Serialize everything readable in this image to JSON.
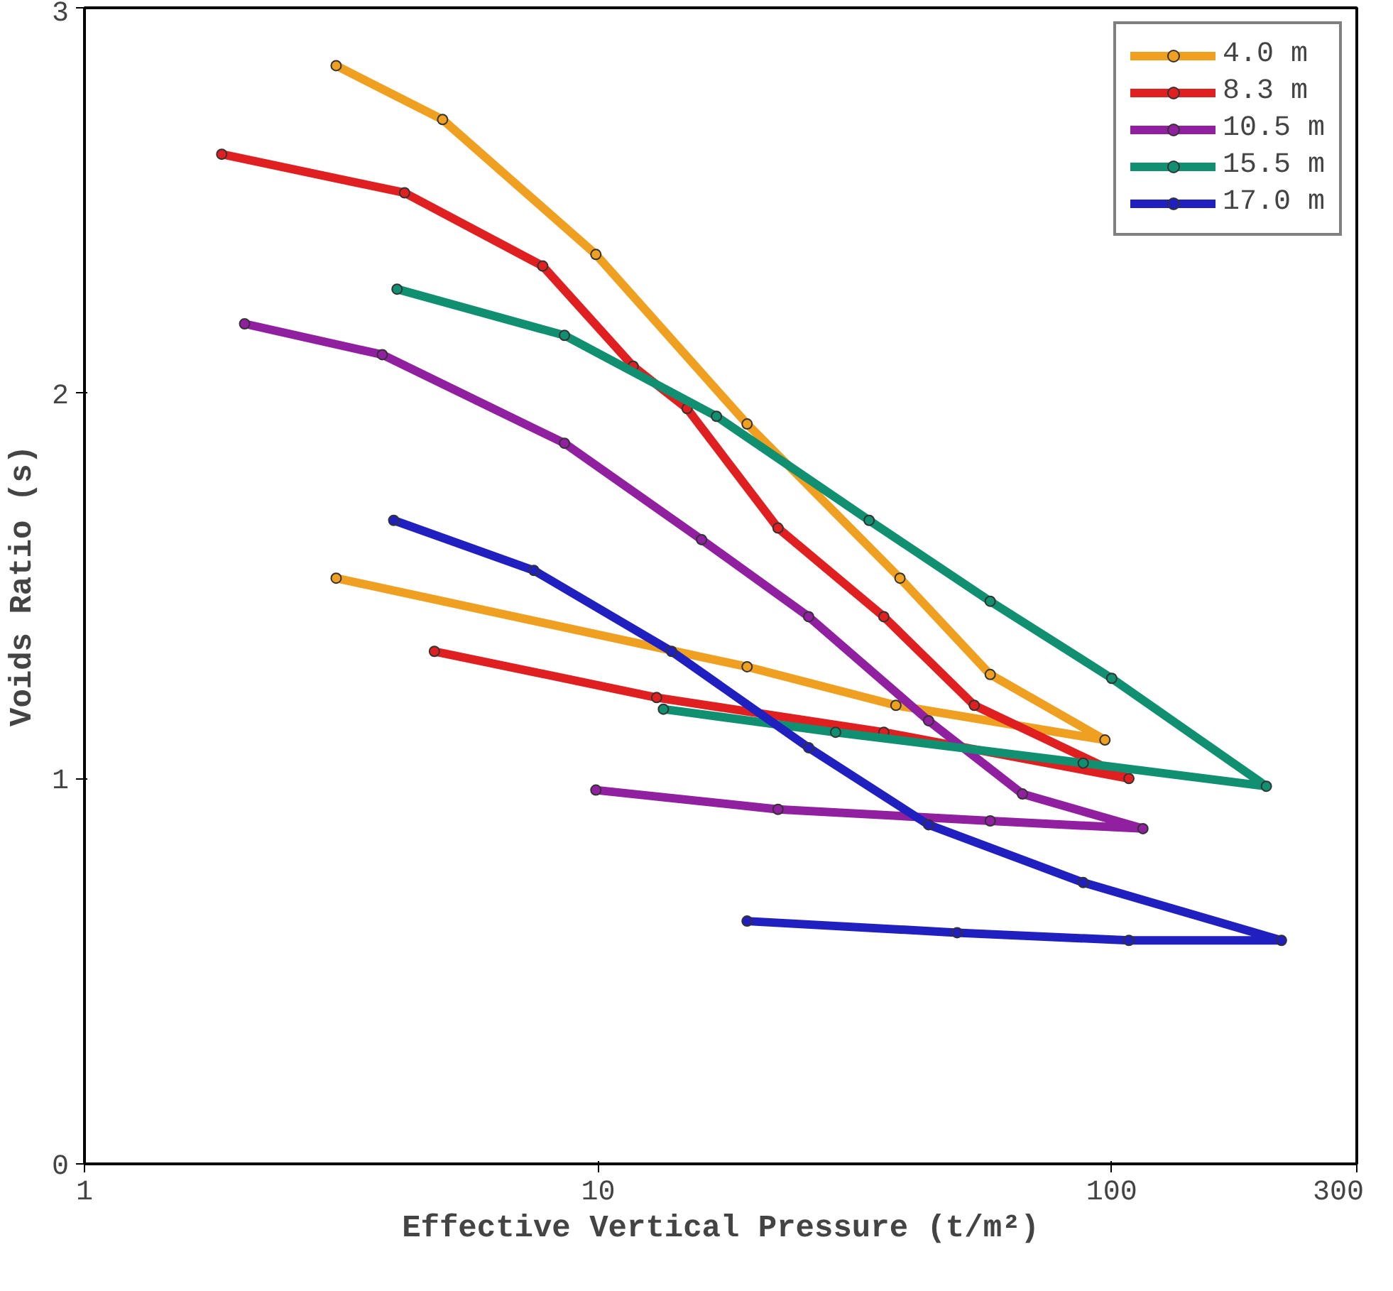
{
  "chart_data": {
    "type": "line",
    "xlabel": "Effective Vertical Pressure (t/m²)",
    "ylabel": "Voids Ratio (s)",
    "log": "x",
    "xlim": [
      1,
      300
    ],
    "xticks": [
      1,
      10,
      100,
      300
    ],
    "ylim": [
      0,
      3
    ],
    "yticks": [
      0,
      1,
      2,
      3
    ],
    "grid": false,
    "legend": "top right",
    "marker": "circle",
    "line_style": "solid",
    "series": [
      {
        "name": "4.0 m",
        "color": "#f0a020",
        "x": [
          3.09,
          4.98,
          9.9,
          19.5,
          38.7,
          58,
          97,
          38,
          19.5,
          3.09
        ],
        "values": [
          2.85,
          2.71,
          2.36,
          1.92,
          1.52,
          1.27,
          1.1,
          1.19,
          1.29,
          1.52
        ]
      },
      {
        "name": "8.3 m",
        "color": "#e02020",
        "x": [
          1.85,
          4.2,
          7.8,
          11.7,
          14.9,
          22.4,
          36,
          54,
          108,
          36,
          13,
          4.8
        ],
        "values": [
          2.62,
          2.52,
          2.33,
          2.07,
          1.96,
          1.65,
          1.42,
          1.19,
          1.0,
          1.12,
          1.21,
          1.33
        ]
      },
      {
        "name": "10.5 m",
        "color": "#9020a0",
        "x": [
          2.05,
          3.8,
          8.6,
          15.9,
          25.7,
          44,
          67,
          115,
          58,
          22.4,
          9.9
        ],
        "values": [
          2.18,
          2.1,
          1.87,
          1.62,
          1.42,
          1.15,
          0.96,
          0.87,
          0.89,
          0.92,
          0.97
        ]
      },
      {
        "name": "15.5 m",
        "color": "#109070",
        "x": [
          4.06,
          8.6,
          17,
          33.7,
          58,
          100,
          200,
          88,
          29,
          13.4
        ],
        "values": [
          2.27,
          2.15,
          1.94,
          1.67,
          1.46,
          1.26,
          0.98,
          1.04,
          1.12,
          1.18
        ]
      },
      {
        "name": "17.0 m",
        "color": "#2020c0",
        "x": [
          4.0,
          7.5,
          13.9,
          25.7,
          44,
          88,
          214,
          108,
          50,
          19.5
        ],
        "values": [
          1.67,
          1.54,
          1.33,
          1.08,
          0.88,
          0.73,
          0.58,
          0.58,
          0.6,
          0.63
        ]
      }
    ]
  }
}
